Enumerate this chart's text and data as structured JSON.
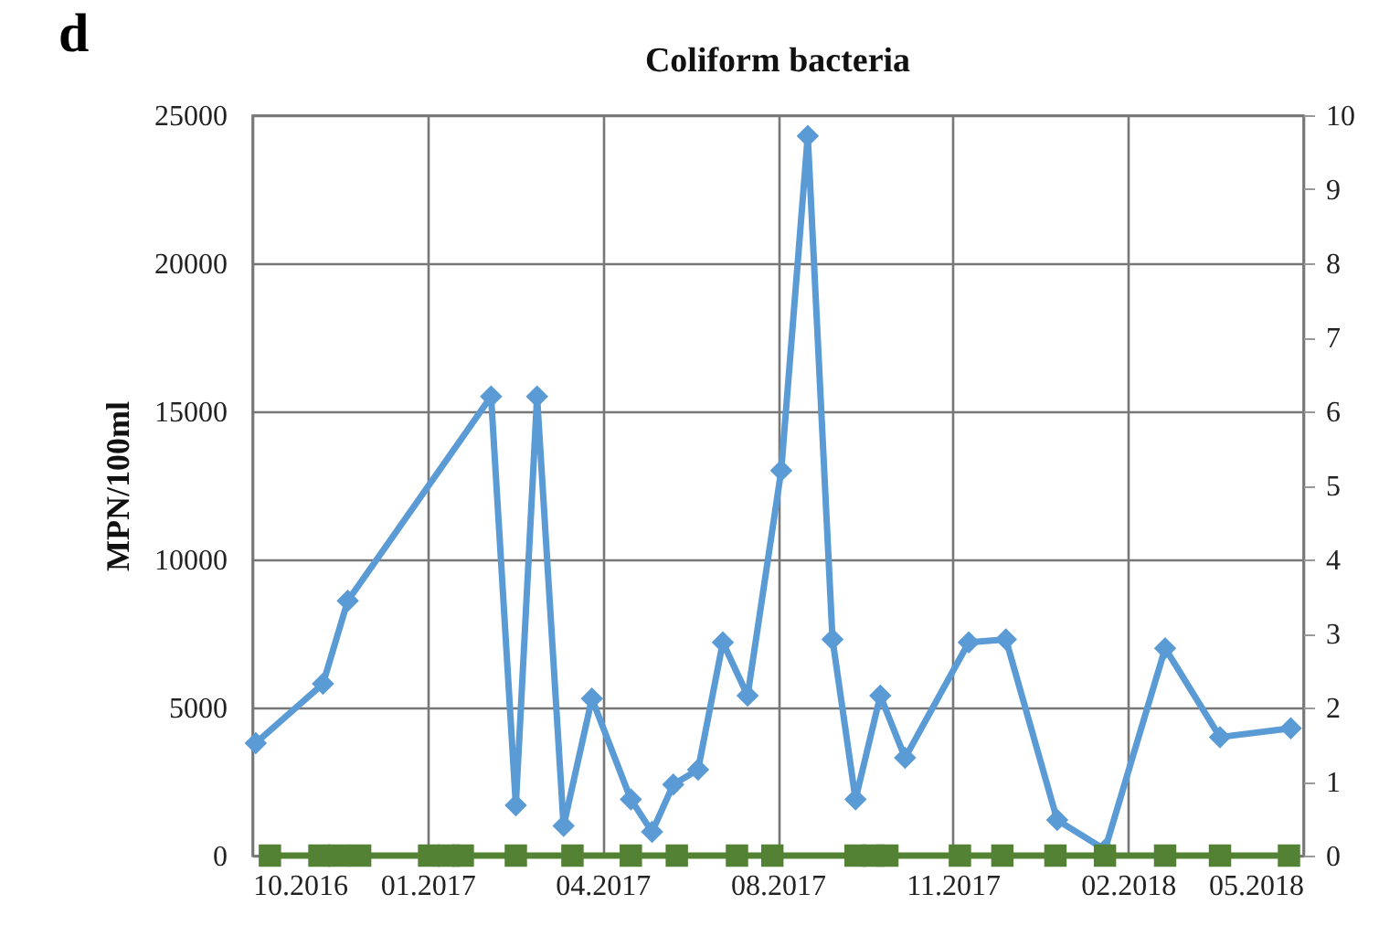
{
  "chart_data": {
    "type": "line",
    "title": "Coliform bacteria",
    "ylabel": "MPN/100ml",
    "annotations": [
      "d"
    ],
    "xlim": [
      "2016-10-10",
      "2018-05-27"
    ],
    "xticks": [
      {
        "value": "2016-10-10",
        "label": "10.2016"
      },
      {
        "value": "2017-01-17",
        "label": "01.2017"
      },
      {
        "value": "2017-04-26",
        "label": "04.2017"
      },
      {
        "value": "2017-08-03",
        "label": "08.2017"
      },
      {
        "value": "2017-11-10",
        "label": "11.2017"
      },
      {
        "value": "2018-02-17",
        "label": "02.2018"
      },
      {
        "value": "2018-05-27",
        "label": "05.2018"
      }
    ],
    "ylim": [
      0,
      25000
    ],
    "yticks": [
      0,
      5000,
      10000,
      15000,
      20000,
      25000
    ],
    "y2lim": [
      0,
      10
    ],
    "y2ticks": [
      0,
      1,
      2,
      3,
      4,
      5,
      6,
      7,
      8,
      9,
      10
    ],
    "grid": true,
    "series": [
      {
        "color": "#5b9bd5",
        "marker": "diamond",
        "x": [
          "2016-10-12",
          "2016-11-19",
          "2016-12-03",
          "2017-02-22",
          "2017-03-08",
          "2017-03-20",
          "2017-04-04",
          "2017-04-20",
          "2017-05-12",
          "2017-05-24",
          "2017-06-05",
          "2017-06-19",
          "2017-07-03",
          "2017-07-17",
          "2017-08-05",
          "2017-08-20",
          "2017-09-03",
          "2017-09-16",
          "2017-09-30",
          "2017-10-14",
          "2017-11-19",
          "2017-12-10",
          "2018-01-08",
          "2018-02-04",
          "2018-03-10",
          "2018-04-10",
          "2018-05-20"
        ],
        "values": [
          3800,
          5800,
          8600,
          15500,
          1700,
          15500,
          1000,
          5300,
          1900,
          800,
          2400,
          2900,
          7200,
          5400,
          13000,
          24300,
          7300,
          1900,
          5400,
          3300,
          7200,
          7300,
          1200,
          200,
          7000,
          4000,
          4300
        ]
      },
      {
        "color": "#548235",
        "marker": "square",
        "axis": "y2",
        "x": [
          "2016-10-20",
          "2016-11-17",
          "2016-11-28",
          "2016-12-10",
          "2017-01-18",
          "2017-01-29",
          "2017-02-06",
          "2017-03-08",
          "2017-04-09",
          "2017-05-12",
          "2017-06-07",
          "2017-07-11",
          "2017-07-31",
          "2017-09-16",
          "2017-09-26",
          "2017-10-04",
          "2017-11-14",
          "2017-12-08",
          "2018-01-07",
          "2018-02-04",
          "2018-03-10",
          "2018-04-10",
          "2018-05-19"
        ],
        "values": [
          0,
          0,
          0,
          0,
          0,
          0,
          0,
          0,
          0,
          0,
          0,
          0,
          0,
          0,
          0,
          0,
          0,
          0,
          0,
          0,
          0,
          0,
          0
        ]
      }
    ]
  }
}
